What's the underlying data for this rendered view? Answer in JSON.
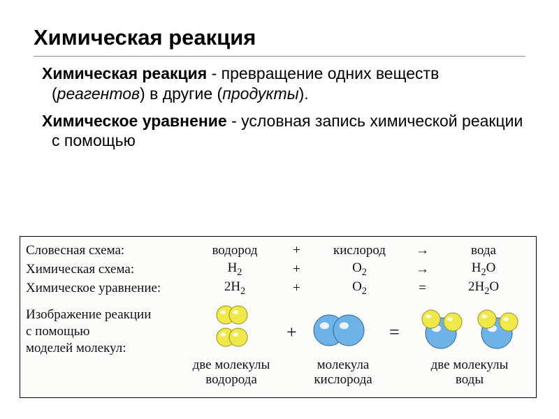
{
  "title": "Химическая реакция",
  "para1": {
    "term": "Химическая реакция",
    "text1": " - превращение одних веществ (",
    "italic1": "реагентов",
    "text2": ") в другие (",
    "italic2": "продукты",
    "text3": ")."
  },
  "para2": {
    "term": "Химическое уравнение",
    "text": " - условная запись химической реакции с помощью"
  },
  "diagram": {
    "labels": {
      "verbal": "Словесная схема:",
      "chem_schema": "Химическая схема:",
      "chem_eq": "Химическое уравнение:",
      "image_label_l1": "Изображение реакции",
      "image_label_l2": "с помощью",
      "image_label_l3": "моделей молекул:"
    },
    "verbal": {
      "c1": "водород",
      "op1": "+",
      "c3": "кислород",
      "op2": "→",
      "c5": "вода"
    },
    "chem_schema": {
      "c1": {
        "main": "H",
        "sub": "2"
      },
      "op1": "+",
      "c3": {
        "main": "O",
        "sub": "2"
      },
      "op2": "→",
      "c5": {
        "main": "H",
        "sub": "2",
        "main2": "O"
      }
    },
    "chem_eq": {
      "c1": {
        "pre": "2",
        "main": "H",
        "sub": "2"
      },
      "op1": "+",
      "c3": {
        "main": "O",
        "sub": "2"
      },
      "op2": "=",
      "c5": {
        "pre": "2",
        "main": "H",
        "sub": "2",
        "main2": "O"
      }
    },
    "captions": {
      "hydrogen_l1": "две молекулы",
      "hydrogen_l2": "водорода",
      "oxygen_l1": "молекула",
      "oxygen_l2": "кислорода",
      "water_l1": "две молекулы",
      "water_l2": "воды"
    },
    "ops": {
      "plus": "+",
      "eq": "="
    },
    "colors": {
      "hydrogen_fill": "#f1e94a",
      "hydrogen_stroke": "#9b8f1a",
      "hydrogen_highlight": "#ffffff",
      "oxygen_fill": "#6db3e8",
      "oxygen_stroke": "#2b6ca3",
      "oxygen_highlight": "#ffffff"
    },
    "sizes": {
      "hydrogen_radius": 13,
      "oxygen_radius": 22
    }
  }
}
